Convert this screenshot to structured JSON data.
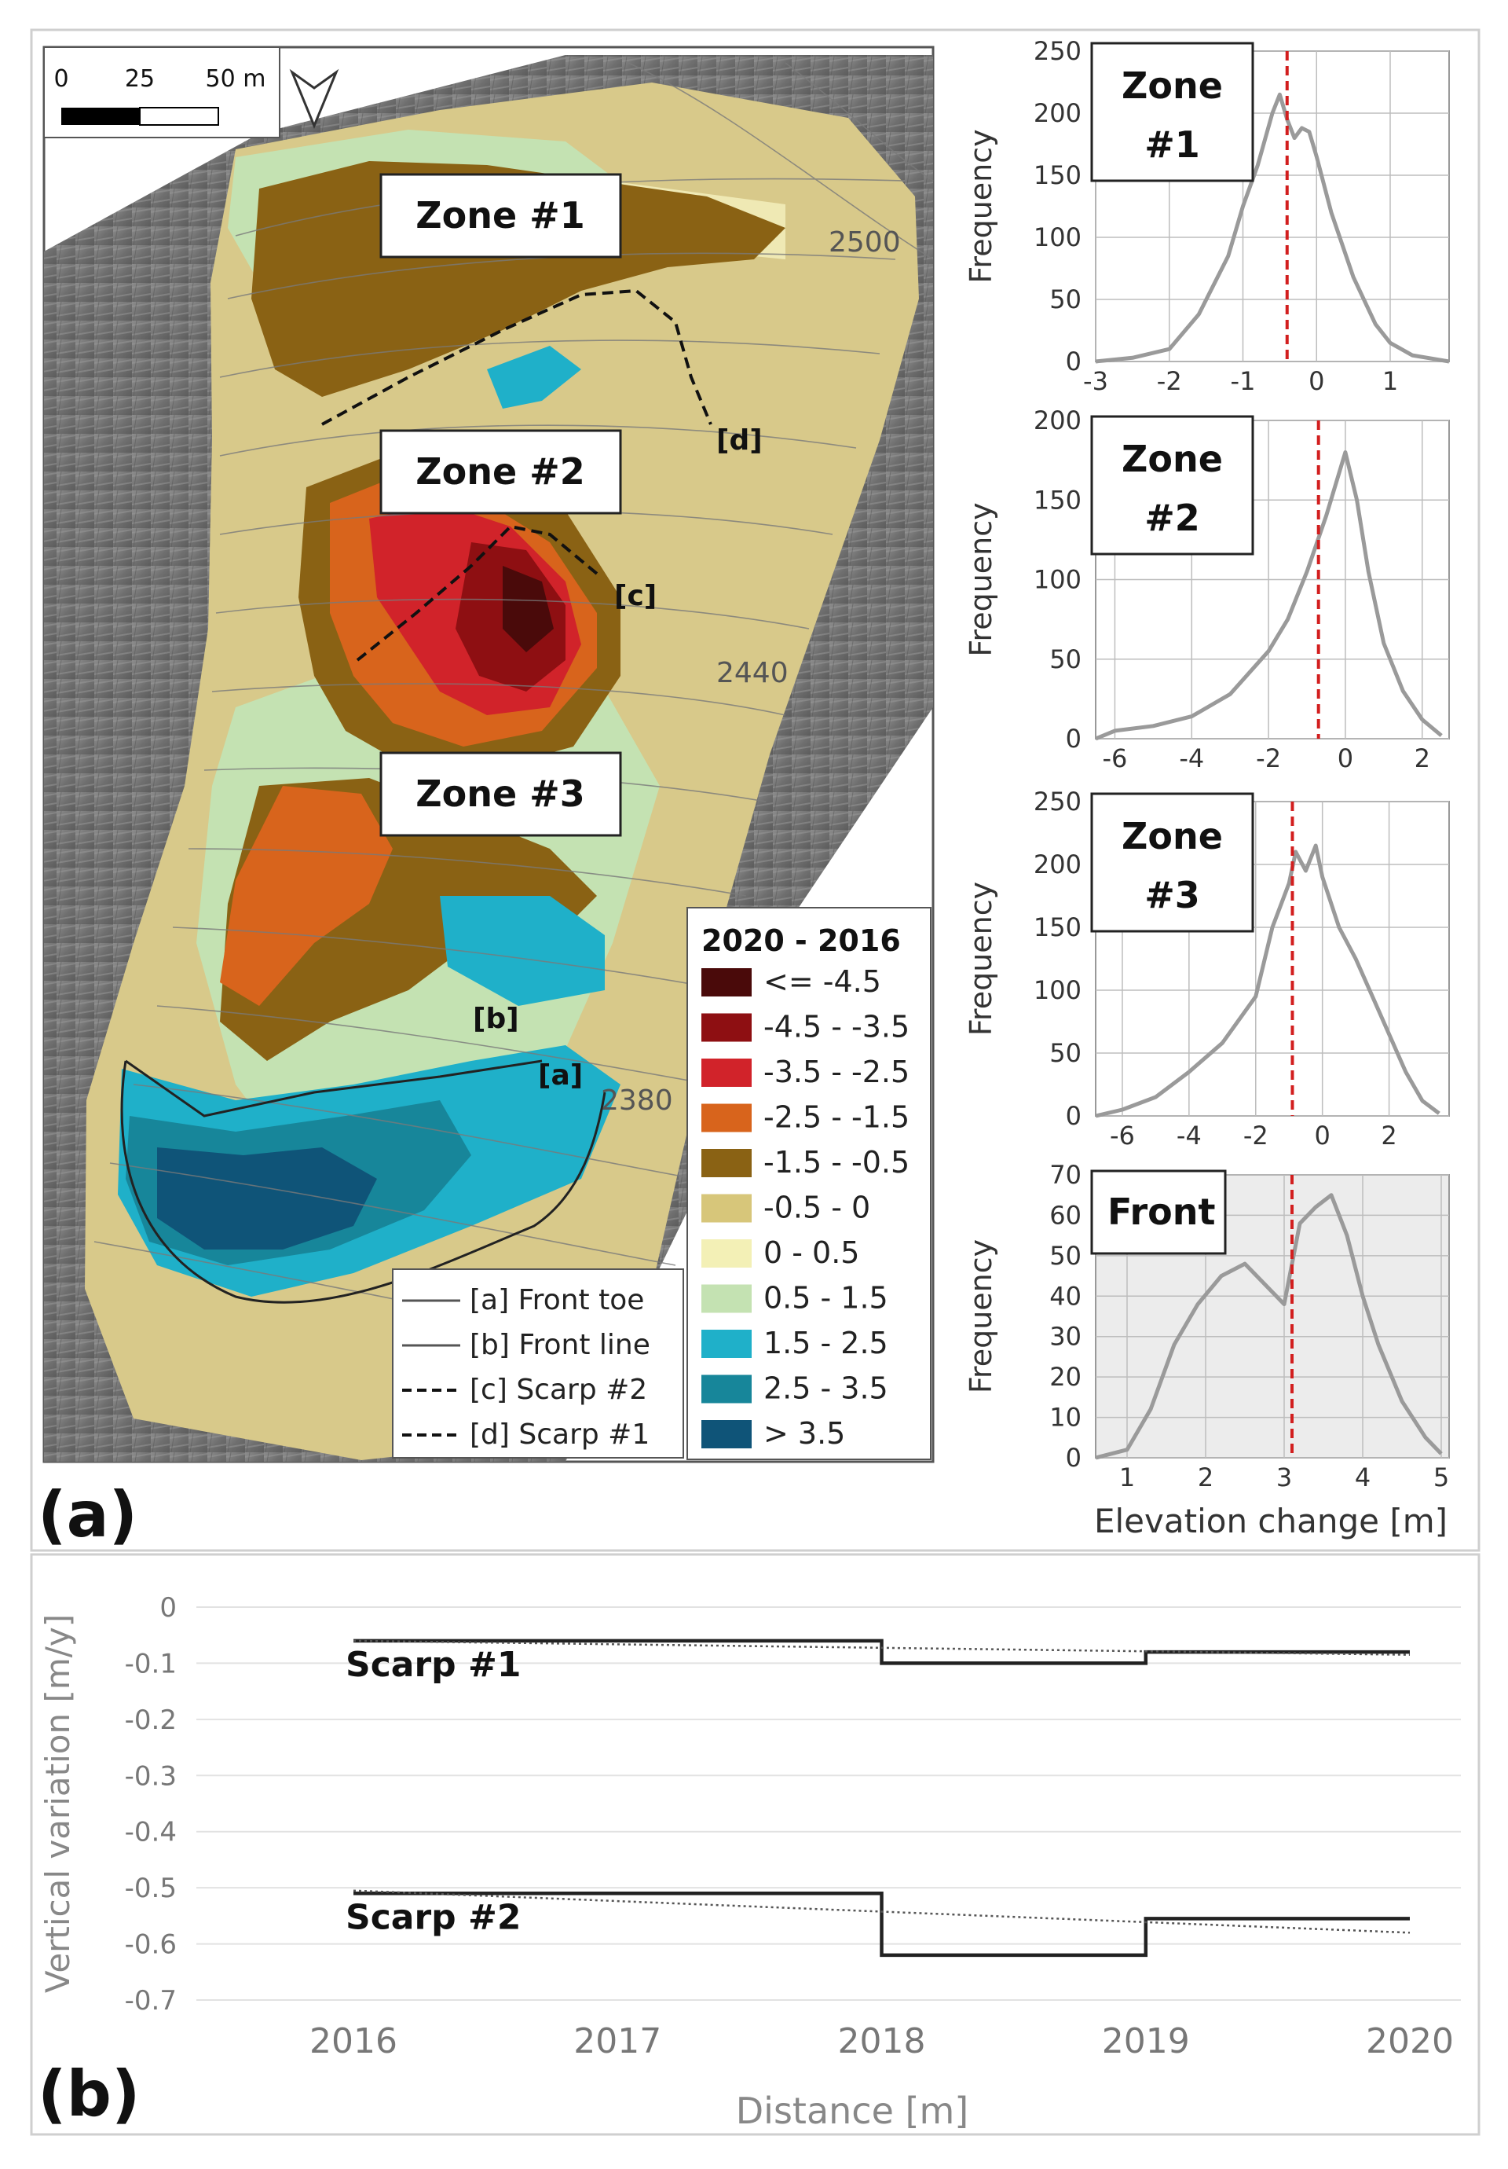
{
  "panel_a": {
    "label": "(a)",
    "map": {
      "scale_bar": {
        "ticks": [
          "0",
          "25",
          "50 m"
        ]
      },
      "north_arrow_icon": "north-arrow-icon",
      "zones": [
        "Zone #1",
        "Zone #2",
        "Zone #3"
      ],
      "line_markers": [
        "[a]",
        "[b]",
        "[c]",
        "[d]"
      ],
      "contour_labels": [
        "2500",
        "2440",
        "2380"
      ],
      "line_legend": [
        {
          "label": "[a] Front toe",
          "style": "solid"
        },
        {
          "label": "[b] Front line",
          "style": "solid"
        },
        {
          "label": "[c] Scarp #2",
          "style": "dashed"
        },
        {
          "label": "[d] Scarp #1",
          "style": "dashed"
        }
      ],
      "color_legend": {
        "title": "2020 - 2016",
        "classes": [
          {
            "label": "<= -4.5",
            "color": "#4a0a0a"
          },
          {
            "label": "-4.5 - -3.5",
            "color": "#8e0f12"
          },
          {
            "label": "-3.5 - -2.5",
            "color": "#d1232a"
          },
          {
            "label": "-2.5 - -1.5",
            "color": "#d8641c"
          },
          {
            "label": "-1.5 - -0.5",
            "color": "#8a6214"
          },
          {
            "label": "-0.5 - 0",
            "color": "#d7c67a"
          },
          {
            "label": "0 - 0.5",
            "color": "#f3f0b6"
          },
          {
            "label": "0.5 - 1.5",
            "color": "#c4e2b2"
          },
          {
            "label": "1.5 - 2.5",
            "color": "#1fb0c9"
          },
          {
            "label": "2.5 - 3.5",
            "color": "#17869a"
          },
          {
            "label": "> 3.5",
            "color": "#0f5478"
          }
        ]
      }
    },
    "histograms_ylabel": "Frequency",
    "histograms_xlabel": "Elevation change [m]"
  },
  "panel_b": {
    "label": "(b)"
  },
  "chart_data": [
    {
      "type": "area",
      "title": "Zone #1",
      "ylabel": "Frequency",
      "xlabel": "",
      "xlim": [
        -3,
        1.8
      ],
      "ylim": [
        0,
        250
      ],
      "xticks": [
        -3,
        -2,
        -1,
        0,
        1
      ],
      "yticks": [
        0,
        50,
        100,
        150,
        200,
        250
      ],
      "mean_line": -0.4,
      "x": [
        -3.0,
        -2.5,
        -2.0,
        -1.6,
        -1.2,
        -1.0,
        -0.8,
        -0.6,
        -0.5,
        -0.4,
        -0.3,
        -0.2,
        -0.1,
        0.0,
        0.2,
        0.5,
        0.8,
        1.0,
        1.3,
        1.6,
        1.8
      ],
      "values": [
        0,
        3,
        10,
        38,
        85,
        125,
        158,
        200,
        215,
        195,
        180,
        188,
        185,
        165,
        120,
        68,
        30,
        15,
        5,
        2,
        0
      ]
    },
    {
      "type": "area",
      "title": "Zone #2",
      "ylabel": "Frequency",
      "xlabel": "",
      "xlim": [
        -6.5,
        2.7
      ],
      "ylim": [
        0,
        200
      ],
      "xticks": [
        -6,
        -4,
        -2,
        0,
        2
      ],
      "yticks": [
        0,
        50,
        100,
        150,
        200
      ],
      "mean_line": -0.7,
      "x": [
        -6.5,
        -6.0,
        -5.0,
        -4.0,
        -3.0,
        -2.0,
        -1.5,
        -1.0,
        -0.5,
        0.0,
        0.3,
        0.6,
        1.0,
        1.5,
        2.0,
        2.5
      ],
      "values": [
        0,
        5,
        8,
        14,
        28,
        55,
        75,
        105,
        140,
        180,
        150,
        105,
        60,
        30,
        12,
        2
      ]
    },
    {
      "type": "area",
      "title": "Zone #3",
      "ylabel": "Frequency",
      "xlabel": "",
      "xlim": [
        -6.8,
        3.8
      ],
      "ylim": [
        0,
        250
      ],
      "xticks": [
        -6,
        -4,
        -2,
        0,
        2
      ],
      "yticks": [
        0,
        50,
        100,
        150,
        200,
        250
      ],
      "mean_line": -0.9,
      "x": [
        -6.8,
        -6.0,
        -5.0,
        -4.0,
        -3.0,
        -2.0,
        -1.5,
        -1.0,
        -0.8,
        -0.5,
        -0.2,
        0.0,
        0.5,
        1.0,
        1.5,
        2.0,
        2.5,
        3.0,
        3.5
      ],
      "values": [
        0,
        5,
        15,
        35,
        58,
        95,
        150,
        185,
        210,
        195,
        215,
        190,
        150,
        125,
        95,
        65,
        35,
        12,
        2
      ]
    },
    {
      "type": "area",
      "title": "Front",
      "ylabel": "Frequency",
      "xlabel": "Elevation change [m]",
      "xlim": [
        0.6,
        5.1
      ],
      "ylim": [
        0,
        70
      ],
      "xticks": [
        1,
        2,
        3,
        4,
        5
      ],
      "yticks": [
        0,
        10,
        20,
        30,
        40,
        50,
        60,
        70
      ],
      "mean_line": 3.1,
      "x": [
        0.6,
        1.0,
        1.3,
        1.6,
        1.9,
        2.2,
        2.5,
        2.8,
        3.0,
        3.2,
        3.4,
        3.6,
        3.8,
        4.0,
        4.2,
        4.5,
        4.8,
        5.0
      ],
      "values": [
        0,
        2,
        12,
        28,
        38,
        45,
        48,
        42,
        38,
        58,
        62,
        65,
        55,
        40,
        28,
        14,
        5,
        1
      ]
    },
    {
      "type": "line",
      "title": "",
      "xlabel": "Distance [m]",
      "ylabel": "Vertical variation [m/y]",
      "categories": [
        "2016",
        "2017",
        "2018",
        "2019",
        "2020"
      ],
      "xlim": [
        2016,
        2020
      ],
      "ylim": [
        -0.7,
        0
      ],
      "yticks": [
        0,
        -0.1,
        -0.2,
        -0.3,
        -0.4,
        -0.5,
        -0.6,
        -0.7
      ],
      "grid": true,
      "series": [
        {
          "name": "Scarp #1",
          "style": "step",
          "x": [
            2016,
            2018,
            2018,
            2019,
            2019,
            2020
          ],
          "values": [
            -0.06,
            -0.06,
            -0.1,
            -0.1,
            -0.08,
            -0.08
          ]
        },
        {
          "style": "dotted",
          "x": [
            2016,
            2020
          ],
          "values": [
            -0.06,
            -0.085
          ]
        },
        {
          "name": "Scarp #2",
          "style": "step",
          "x": [
            2016,
            2018,
            2018,
            2019,
            2019,
            2020
          ],
          "values": [
            -0.51,
            -0.51,
            -0.62,
            -0.62,
            -0.555,
            -0.555
          ]
        },
        {
          "style": "dotted",
          "x": [
            2016,
            2020
          ],
          "values": [
            -0.505,
            -0.58
          ]
        }
      ]
    }
  ]
}
